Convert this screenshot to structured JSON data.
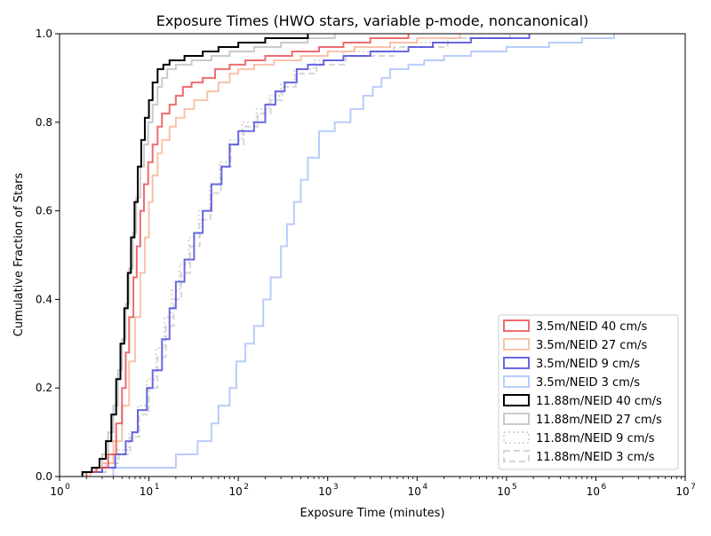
{
  "chart_data": {
    "type": "step",
    "title": "Exposure Times (HWO stars, variable p-mode, noncanonical)",
    "xlabel": "Exposure Time (minutes)",
    "ylabel": "Cumulative Fraction of Stars",
    "xscale": "log",
    "xlim": [
      1,
      10000000
    ],
    "ylim": [
      0,
      1
    ],
    "x_ticks": [
      {
        "value": 1,
        "base": "10",
        "exp": "0"
      },
      {
        "value": 10,
        "base": "10",
        "exp": "1"
      },
      {
        "value": 100,
        "base": "10",
        "exp": "2"
      },
      {
        "value": 1000,
        "base": "10",
        "exp": "3"
      },
      {
        "value": 10000,
        "base": "10",
        "exp": "4"
      },
      {
        "value": 100000,
        "base": "10",
        "exp": "5"
      },
      {
        "value": 1000000,
        "base": "10",
        "exp": "6"
      },
      {
        "value": 10000000,
        "base": "10",
        "exp": "7"
      }
    ],
    "y_ticks": [
      {
        "value": 0.0,
        "label": "0.0"
      },
      {
        "value": 0.2,
        "label": "0.2"
      },
      {
        "value": 0.4,
        "label": "0.4"
      },
      {
        "value": 0.6,
        "label": "0.6"
      },
      {
        "value": 0.8,
        "label": "0.8"
      },
      {
        "value": 1.0,
        "label": "1.0"
      }
    ],
    "legend_position": "lower-right",
    "series": [
      {
        "name": "3.5m/NEID 40 cm/s",
        "color": "#e8474a",
        "opacity": 0.8,
        "dash": "solid",
        "points": [
          [
            2.0,
            0.01
          ],
          [
            2.6,
            0.02
          ],
          [
            3.5,
            0.05
          ],
          [
            4.3,
            0.12
          ],
          [
            5.0,
            0.2
          ],
          [
            5.5,
            0.28
          ],
          [
            6.0,
            0.36
          ],
          [
            6.7,
            0.45
          ],
          [
            7.3,
            0.52
          ],
          [
            8.0,
            0.6
          ],
          [
            8.8,
            0.66
          ],
          [
            9.8,
            0.71
          ],
          [
            11,
            0.75
          ],
          [
            12.5,
            0.79
          ],
          [
            14,
            0.82
          ],
          [
            17,
            0.84
          ],
          [
            20,
            0.86
          ],
          [
            24,
            0.88
          ],
          [
            30,
            0.89
          ],
          [
            40,
            0.9
          ],
          [
            55,
            0.92
          ],
          [
            80,
            0.93
          ],
          [
            120,
            0.94
          ],
          [
            200,
            0.95
          ],
          [
            400,
            0.96
          ],
          [
            800,
            0.97
          ],
          [
            1500,
            0.98
          ],
          [
            3000,
            0.99
          ],
          [
            8000,
            1.0
          ]
        ]
      },
      {
        "name": "3.5m/NEID 27 cm/s",
        "color": "#f7b89a",
        "opacity": 0.85,
        "dash": "solid",
        "points": [
          [
            2.2,
            0.01
          ],
          [
            3.0,
            0.03
          ],
          [
            4.0,
            0.08
          ],
          [
            5.0,
            0.16
          ],
          [
            6.0,
            0.26
          ],
          [
            7.0,
            0.36
          ],
          [
            8.0,
            0.46
          ],
          [
            9.0,
            0.54
          ],
          [
            10,
            0.62
          ],
          [
            11,
            0.68
          ],
          [
            12.5,
            0.73
          ],
          [
            14,
            0.76
          ],
          [
            17,
            0.79
          ],
          [
            20,
            0.81
          ],
          [
            25,
            0.83
          ],
          [
            32,
            0.85
          ],
          [
            45,
            0.87
          ],
          [
            60,
            0.89
          ],
          [
            80,
            0.91
          ],
          [
            100,
            0.92
          ],
          [
            150,
            0.93
          ],
          [
            250,
            0.94
          ],
          [
            500,
            0.95
          ],
          [
            1000,
            0.96
          ],
          [
            2000,
            0.97
          ],
          [
            5000,
            0.98
          ],
          [
            10000,
            0.99
          ],
          [
            30000,
            1.0
          ]
        ]
      },
      {
        "name": "3.5m/NEID 9 cm/s",
        "color": "#3535d8",
        "opacity": 0.75,
        "dash": "solid",
        "points": [
          [
            1.8,
            0.01
          ],
          [
            3.0,
            0.02
          ],
          [
            4.2,
            0.05
          ],
          [
            5.5,
            0.08
          ],
          [
            6.5,
            0.1
          ],
          [
            7.5,
            0.15
          ],
          [
            9.5,
            0.2
          ],
          [
            11,
            0.24
          ],
          [
            14,
            0.31
          ],
          [
            17,
            0.38
          ],
          [
            20,
            0.44
          ],
          [
            25,
            0.49
          ],
          [
            32,
            0.55
          ],
          [
            40,
            0.6
          ],
          [
            50,
            0.66
          ],
          [
            65,
            0.7
          ],
          [
            80,
            0.75
          ],
          [
            100,
            0.78
          ],
          [
            150,
            0.8
          ],
          [
            200,
            0.84
          ],
          [
            260,
            0.87
          ],
          [
            330,
            0.89
          ],
          [
            450,
            0.92
          ],
          [
            600,
            0.93
          ],
          [
            900,
            0.94
          ],
          [
            1500,
            0.95
          ],
          [
            3000,
            0.96
          ],
          [
            8000,
            0.97
          ],
          [
            15000,
            0.98
          ],
          [
            40000,
            0.99
          ],
          [
            180000,
            1.0
          ]
        ]
      },
      {
        "name": "3.5m/NEID 3 cm/s",
        "color": "#a7c1f7",
        "opacity": 0.8,
        "dash": "solid",
        "points": [
          [
            4.0,
            0.02
          ],
          [
            20,
            0.05
          ],
          [
            35,
            0.08
          ],
          [
            50,
            0.12
          ],
          [
            60,
            0.16
          ],
          [
            80,
            0.2
          ],
          [
            95,
            0.26
          ],
          [
            120,
            0.3
          ],
          [
            150,
            0.34
          ],
          [
            190,
            0.4
          ],
          [
            230,
            0.45
          ],
          [
            300,
            0.52
          ],
          [
            350,
            0.57
          ],
          [
            420,
            0.62
          ],
          [
            500,
            0.67
          ],
          [
            600,
            0.72
          ],
          [
            800,
            0.78
          ],
          [
            1200,
            0.8
          ],
          [
            1800,
            0.83
          ],
          [
            2500,
            0.86
          ],
          [
            3200,
            0.88
          ],
          [
            4000,
            0.9
          ],
          [
            5000,
            0.92
          ],
          [
            8000,
            0.93
          ],
          [
            12000,
            0.94
          ],
          [
            20000,
            0.95
          ],
          [
            40000,
            0.96
          ],
          [
            100000,
            0.97
          ],
          [
            300000,
            0.98
          ],
          [
            700000,
            0.99
          ],
          [
            1600000,
            1.0
          ]
        ]
      },
      {
        "name": "11.88m/NEID 40 cm/s",
        "color": "#000000",
        "opacity": 1.0,
        "dash": "solid",
        "points": [
          [
            1.8,
            0.01
          ],
          [
            2.3,
            0.02
          ],
          [
            2.8,
            0.04
          ],
          [
            3.3,
            0.08
          ],
          [
            3.8,
            0.14
          ],
          [
            4.3,
            0.22
          ],
          [
            4.8,
            0.3
          ],
          [
            5.3,
            0.38
          ],
          [
            5.8,
            0.46
          ],
          [
            6.3,
            0.54
          ],
          [
            6.9,
            0.62
          ],
          [
            7.5,
            0.7
          ],
          [
            8.2,
            0.76
          ],
          [
            9.0,
            0.81
          ],
          [
            10,
            0.85
          ],
          [
            11,
            0.89
          ],
          [
            12.5,
            0.92
          ],
          [
            14.5,
            0.93
          ],
          [
            17,
            0.94
          ],
          [
            25,
            0.95
          ],
          [
            40,
            0.96
          ],
          [
            60,
            0.97
          ],
          [
            100,
            0.98
          ],
          [
            200,
            0.99
          ],
          [
            600,
            1.0
          ]
        ]
      },
      {
        "name": "11.88m/NEID 27 cm/s",
        "color": "#b8b8b8",
        "opacity": 0.75,
        "dash": "solid",
        "points": [
          [
            1.8,
            0.01
          ],
          [
            2.5,
            0.02
          ],
          [
            3.0,
            0.05
          ],
          [
            3.5,
            0.1
          ],
          [
            4.0,
            0.16
          ],
          [
            4.5,
            0.24
          ],
          [
            5.0,
            0.31
          ],
          [
            5.5,
            0.39
          ],
          [
            6.0,
            0.47
          ],
          [
            6.6,
            0.55
          ],
          [
            7.2,
            0.63
          ],
          [
            8.0,
            0.7
          ],
          [
            8.8,
            0.75
          ],
          [
            9.8,
            0.8
          ],
          [
            11,
            0.84
          ],
          [
            12.5,
            0.88
          ],
          [
            14,
            0.9
          ],
          [
            16,
            0.92
          ],
          [
            20,
            0.93
          ],
          [
            30,
            0.94
          ],
          [
            50,
            0.95
          ],
          [
            80,
            0.96
          ],
          [
            150,
            0.97
          ],
          [
            300,
            0.98
          ],
          [
            600,
            0.99
          ],
          [
            1200,
            1.0
          ]
        ]
      },
      {
        "name": "11.88m/NEID 9 cm/s",
        "color": "#c8c8c8",
        "opacity": 0.75,
        "dash": "dotted",
        "points": [
          [
            2.0,
            0.01
          ],
          [
            3.2,
            0.03
          ],
          [
            4.5,
            0.06
          ],
          [
            6.0,
            0.1
          ],
          [
            7.5,
            0.16
          ],
          [
            9.5,
            0.22
          ],
          [
            12,
            0.29
          ],
          [
            15,
            0.36
          ],
          [
            18,
            0.42
          ],
          [
            22,
            0.48
          ],
          [
            28,
            0.54
          ],
          [
            36,
            0.6
          ],
          [
            48,
            0.66
          ],
          [
            62,
            0.71
          ],
          [
            80,
            0.76
          ],
          [
            110,
            0.8
          ],
          [
            160,
            0.83
          ],
          [
            220,
            0.86
          ],
          [
            300,
            0.89
          ],
          [
            420,
            0.92
          ],
          [
            700,
            0.94
          ],
          [
            1500,
            0.96
          ],
          [
            5000,
            0.98
          ],
          [
            20000,
            0.99
          ],
          [
            100000,
            1.0
          ]
        ]
      },
      {
        "name": "11.88m/NEID 3 cm/s",
        "color": "#c8c8c8",
        "opacity": 0.75,
        "dash": "dashed",
        "points": [
          [
            2.0,
            0.01
          ],
          [
            3.3,
            0.03
          ],
          [
            4.6,
            0.05
          ],
          [
            6.2,
            0.09
          ],
          [
            7.8,
            0.14
          ],
          [
            10,
            0.2
          ],
          [
            12.5,
            0.27
          ],
          [
            15.5,
            0.34
          ],
          [
            19,
            0.4
          ],
          [
            23,
            0.46
          ],
          [
            29,
            0.52
          ],
          [
            37,
            0.58
          ],
          [
            49,
            0.64
          ],
          [
            64,
            0.7
          ],
          [
            82,
            0.75
          ],
          [
            115,
            0.79
          ],
          [
            165,
            0.82
          ],
          [
            230,
            0.85
          ],
          [
            310,
            0.88
          ],
          [
            440,
            0.91
          ],
          [
            750,
            0.93
          ],
          [
            1600,
            0.95
          ],
          [
            5500,
            0.97
          ],
          [
            22000,
            0.99
          ],
          [
            110000,
            1.0
          ]
        ]
      }
    ]
  }
}
